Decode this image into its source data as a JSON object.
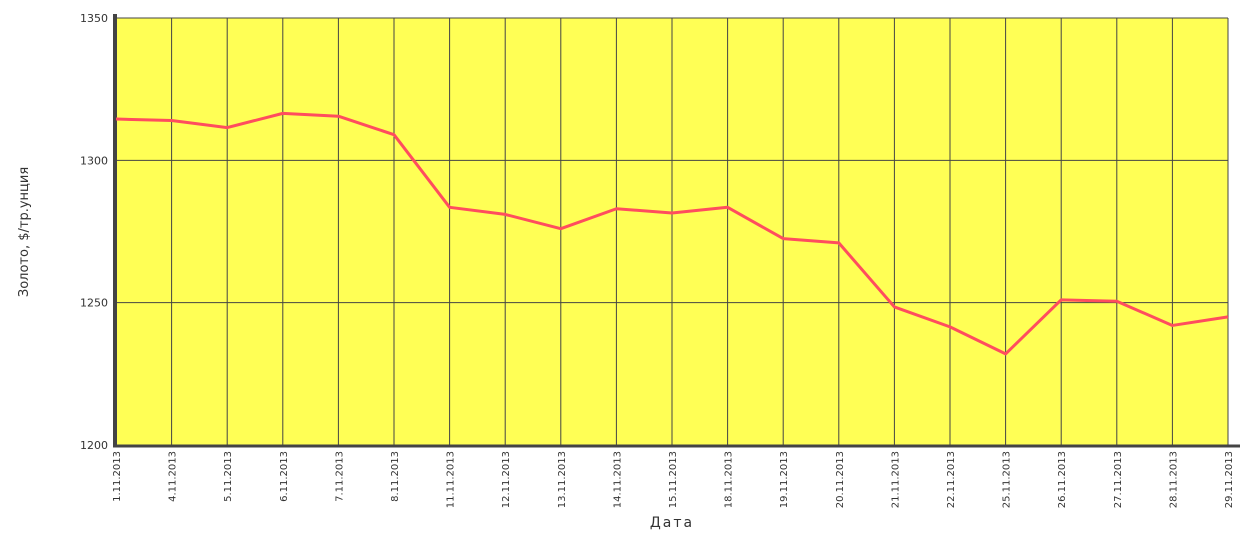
{
  "chart_data": {
    "type": "line",
    "y_label": "Золото, $/тр.унция",
    "x_label": "Дата",
    "categories": [
      "1.11.2013",
      "4.11.2013",
      "5.11.2013",
      "6.11.2013",
      "7.11.2013",
      "8.11.2013",
      "11.11.2013",
      "12.11.2013",
      "13.11.2013",
      "14.11.2013",
      "15.11.2013",
      "18.11.2013",
      "19.11.2013",
      "20.11.2013",
      "21.11.2013",
      "22.11.2013",
      "25.11.2013",
      "26.11.2013",
      "27.11.2013",
      "28.11.2013",
      "29.11.2013"
    ],
    "series": [
      {
        "name": "Золото",
        "color": "#ff4d5e",
        "values": [
          1314.5,
          1314,
          1311.5,
          1316.5,
          1315.5,
          1309,
          1283.5,
          1281,
          1276,
          1283,
          1281.5,
          1283.5,
          1272.5,
          1271,
          1248.5,
          1241.5,
          1232,
          1251,
          1250.5,
          1242,
          1245
        ]
      }
    ],
    "ylim": [
      1200,
      1350
    ],
    "yticks": [
      1200,
      1250,
      1300,
      1350
    ],
    "grid": true,
    "background": "#ffff55"
  }
}
